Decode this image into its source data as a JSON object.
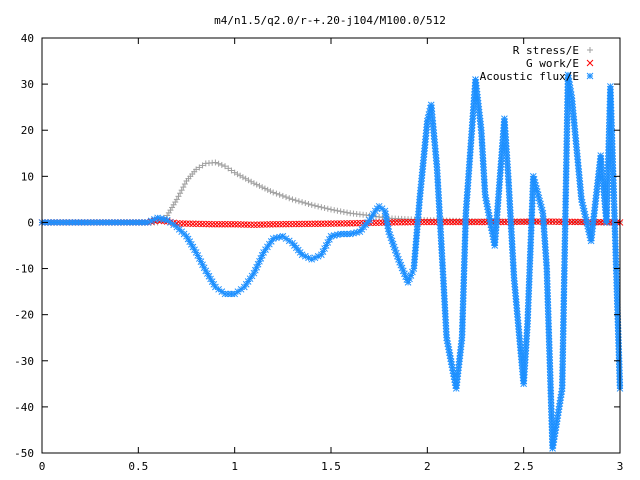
{
  "chart_data": {
    "type": "scatter",
    "title": "m4/n1.5/q2.0/r-+.20-j104/M100.0/512",
    "xlabel": "",
    "ylabel": "",
    "xlim": [
      0,
      3
    ],
    "ylim": [
      -50,
      40
    ],
    "xticks": [
      "0",
      "0.5",
      "1",
      "1.5",
      "2",
      "2.5",
      "3"
    ],
    "yticks": [
      "40",
      "30",
      "20",
      "10",
      "0",
      "-10",
      "-20",
      "-30",
      "-40",
      "-50"
    ],
    "grid": false,
    "legend_position": "top-right",
    "series": [
      {
        "name": "R stress/E",
        "marker": "plus",
        "color": "#a0a0a0",
        "x": [
          0.0,
          0.3,
          0.55,
          0.6,
          0.65,
          0.7,
          0.75,
          0.8,
          0.85,
          0.9,
          0.95,
          1.0,
          1.1,
          1.2,
          1.3,
          1.4,
          1.5,
          1.6,
          1.7,
          1.75,
          1.8,
          1.9,
          2.0,
          2.2,
          2.5,
          2.8,
          3.0
        ],
        "y": [
          0.0,
          0.0,
          0.0,
          0.0,
          1.5,
          5.0,
          9.0,
          11.5,
          12.8,
          13.0,
          12.2,
          10.8,
          8.5,
          6.5,
          5.0,
          3.8,
          2.8,
          2.0,
          1.5,
          1.2,
          0.9,
          0.7,
          0.5,
          0.3,
          0.2,
          0.1,
          0.1
        ]
      },
      {
        "name": "G work/E",
        "marker": "cross",
        "color": "#ff0000",
        "x": [
          0.0,
          0.3,
          0.55,
          0.6,
          0.65,
          0.7,
          0.8,
          0.9,
          1.0,
          1.1,
          1.2,
          1.4,
          1.6,
          1.8,
          2.0,
          2.2,
          2.4,
          2.6,
          2.8,
          3.0
        ],
        "y": [
          0.0,
          0.0,
          0.0,
          0.5,
          0.2,
          -0.2,
          -0.3,
          -0.4,
          -0.4,
          -0.5,
          -0.4,
          -0.3,
          -0.2,
          0.0,
          0.1,
          0.1,
          0.1,
          0.2,
          0.1,
          0.0
        ]
      },
      {
        "name": "Acoustic flux/E",
        "marker": "star",
        "color": "#1e90ff",
        "x": [
          0.0,
          0.3,
          0.55,
          0.6,
          0.65,
          0.7,
          0.75,
          0.8,
          0.85,
          0.9,
          0.95,
          1.0,
          1.05,
          1.1,
          1.15,
          1.2,
          1.25,
          1.3,
          1.35,
          1.4,
          1.45,
          1.5,
          1.55,
          1.6,
          1.65,
          1.7,
          1.73,
          1.75,
          1.78,
          1.8,
          1.85,
          1.9,
          1.93,
          1.96,
          2.0,
          2.02,
          2.05,
          2.08,
          2.1,
          2.15,
          2.18,
          2.2,
          2.25,
          2.28,
          2.3,
          2.35,
          2.4,
          2.42,
          2.45,
          2.5,
          2.52,
          2.55,
          2.6,
          2.62,
          2.65,
          2.7,
          2.73,
          2.75,
          2.8,
          2.85,
          2.9,
          2.93,
          2.95,
          3.0
        ],
        "y": [
          0.0,
          0.0,
          0.0,
          1.0,
          0.5,
          -1.0,
          -3.0,
          -6.5,
          -10.5,
          -14.0,
          -15.5,
          -15.5,
          -14.0,
          -11.0,
          -6.5,
          -3.5,
          -3.0,
          -4.5,
          -7.0,
          -8.0,
          -7.0,
          -3.0,
          -2.5,
          -2.5,
          -2.0,
          0.5,
          2.5,
          3.5,
          2.5,
          -2.0,
          -8.0,
          -13.0,
          -10.0,
          5.0,
          22.0,
          25.5,
          12.0,
          -10.0,
          -25.0,
          -36.0,
          -25.0,
          2.0,
          31.0,
          20.0,
          6.0,
          -5.0,
          22.5,
          10.0,
          -12.0,
          -35.0,
          -22.0,
          10.0,
          2.0,
          -10.0,
          -49.0,
          -36.0,
          32.0,
          27.0,
          5.0,
          -4.0,
          14.5,
          0.0,
          29.5,
          -36.0
        ]
      }
    ]
  }
}
